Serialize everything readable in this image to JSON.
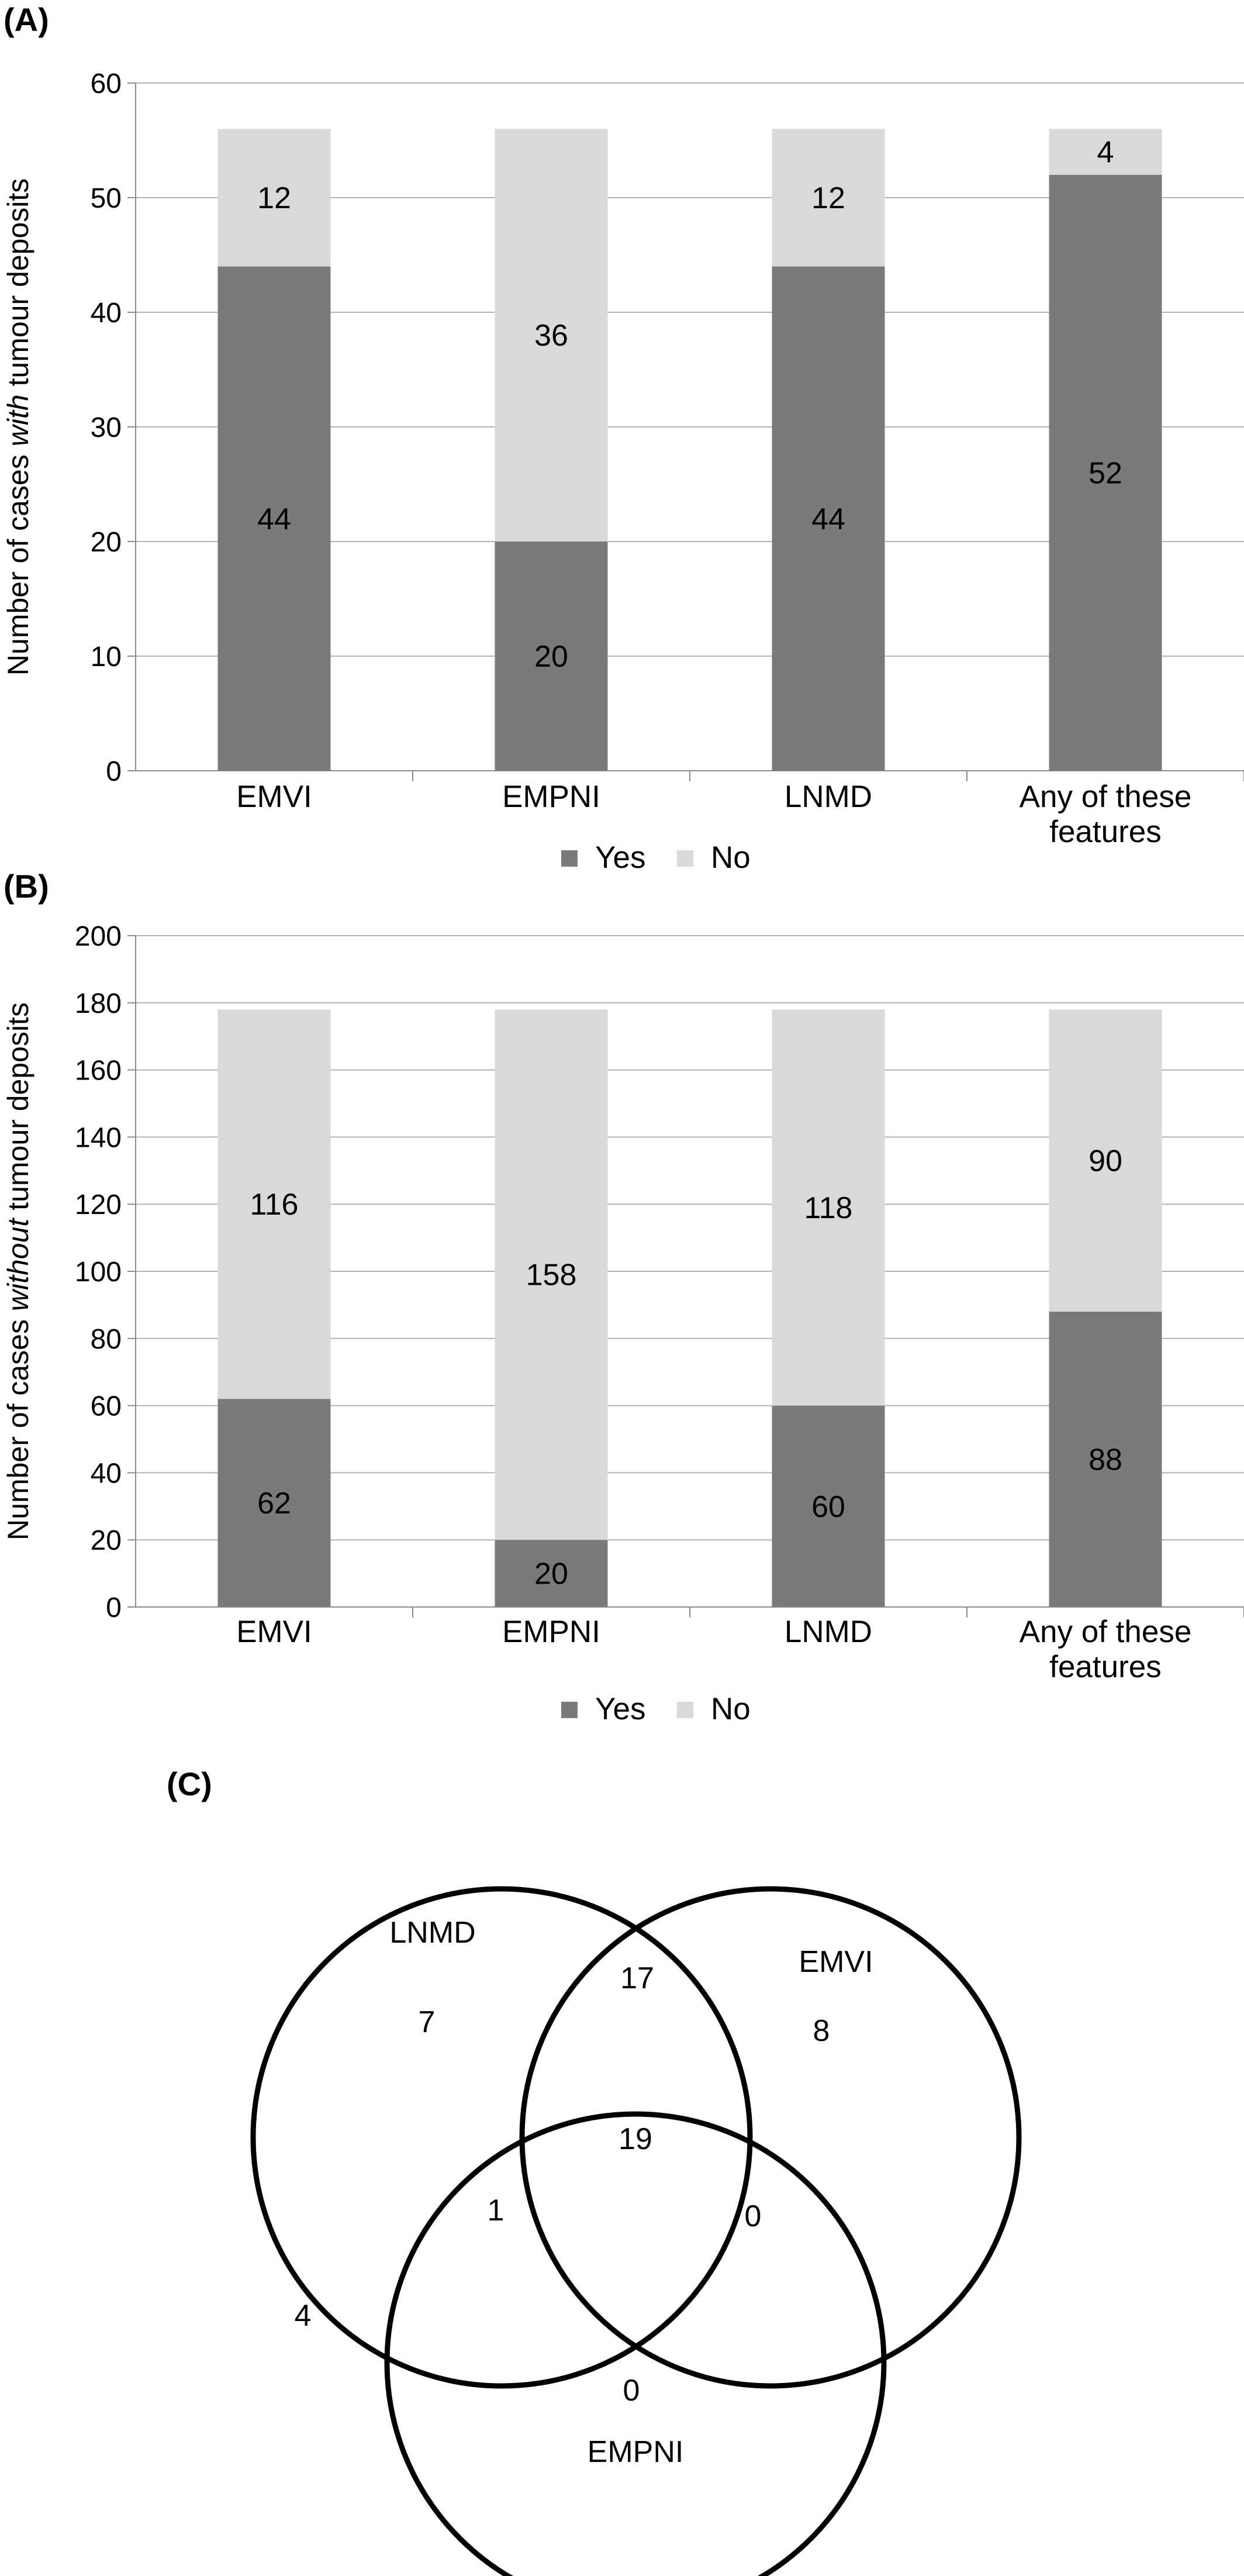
{
  "colors": {
    "yes": "#7a7a7a",
    "no": "#d9d9d9",
    "grid": "#b3b3b3",
    "axis": "#8c8c8c",
    "circle": "#000000"
  },
  "chart_data": [
    {
      "type": "bar",
      "stacked": true,
      "panel_label": "(A)",
      "ylabel_parts": [
        "Number of cases ",
        "with",
        " tumour deposits"
      ],
      "categories": [
        [
          "EMVI"
        ],
        [
          "EMPNI"
        ],
        [
          "LNMD"
        ],
        [
          "Any of these",
          "features"
        ]
      ],
      "series": [
        {
          "name": "Yes",
          "values": [
            44,
            20,
            44,
            52
          ]
        },
        {
          "name": "No",
          "values": [
            12,
            36,
            12,
            4
          ]
        }
      ],
      "ylim": [
        0,
        60
      ],
      "yticks": [
        0,
        10,
        20,
        30,
        40,
        50,
        60
      ],
      "grid": true,
      "legend": "bottom"
    },
    {
      "type": "bar",
      "stacked": true,
      "panel_label": "(B)",
      "ylabel_parts": [
        "Number of cases ",
        "without",
        " tumour deposits"
      ],
      "categories": [
        [
          "EMVI"
        ],
        [
          "EMPNI"
        ],
        [
          "LNMD"
        ],
        [
          "Any of these",
          "features"
        ]
      ],
      "series": [
        {
          "name": "Yes",
          "values": [
            62,
            20,
            60,
            88
          ]
        },
        {
          "name": "No",
          "values": [
            116,
            158,
            118,
            90
          ]
        }
      ],
      "ylim": [
        0,
        200
      ],
      "yticks": [
        0,
        20,
        40,
        60,
        80,
        100,
        120,
        140,
        160,
        180,
        200
      ],
      "grid": true,
      "legend": "bottom"
    }
  ],
  "venn": {
    "panel_label": "(C)",
    "sets": [
      "LNMD",
      "EMVI",
      "EMPNI"
    ],
    "regions": [
      {
        "id": "lnmd-only",
        "value": "7"
      },
      {
        "id": "emvi-only",
        "value": "8"
      },
      {
        "id": "empni-only",
        "value": "0"
      },
      {
        "id": "lnmd-emvi",
        "value": "17"
      },
      {
        "id": "lnmd-empni",
        "value": "1"
      },
      {
        "id": "emvi-empni",
        "value": "0"
      },
      {
        "id": "all-three",
        "value": "19"
      },
      {
        "id": "outside",
        "value": "4"
      }
    ]
  }
}
